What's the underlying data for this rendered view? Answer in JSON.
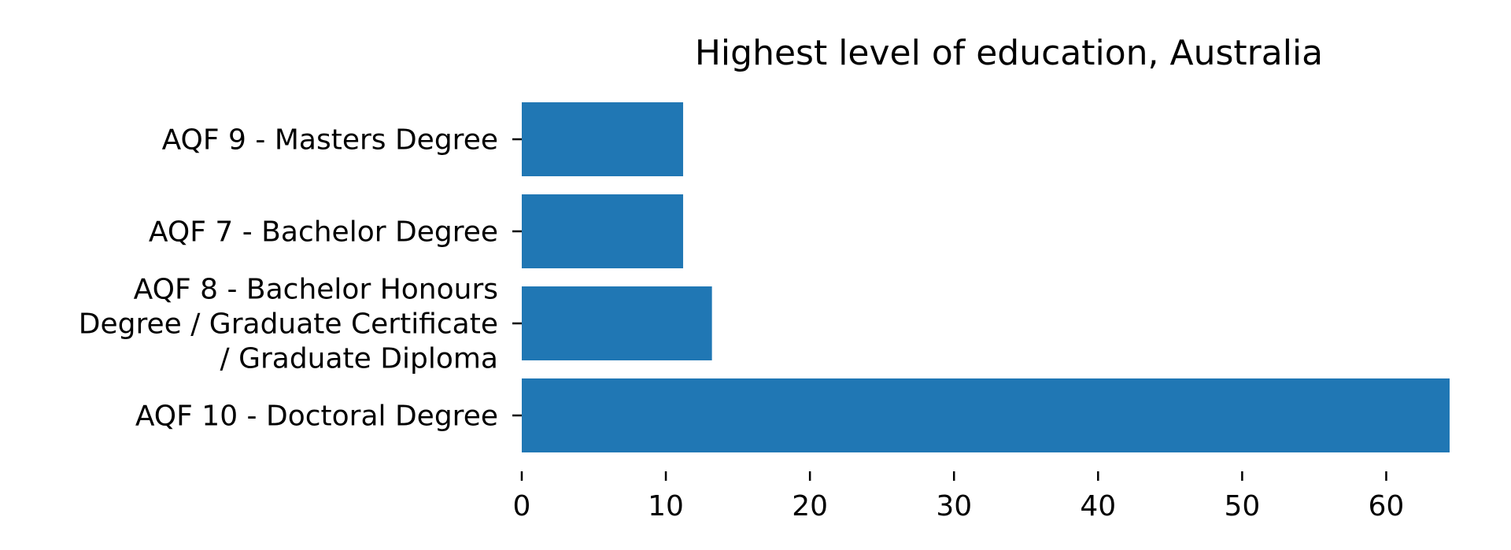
{
  "chart_data": {
    "type": "bar",
    "orientation": "horizontal",
    "title": "Highest level of education, Australia",
    "xlabel": "",
    "ylabel": "",
    "categories": [
      "AQF 9 - Masters Degree",
      "AQF 7 - Bachelor Degree",
      "AQF 8 - Bachelor Honours Degree / Graduate Certificate / Graduate Diploma",
      "AQF 10 - Doctoral Degree"
    ],
    "category_label_lines": [
      [
        "AQF 9 - Masters Degree"
      ],
      [
        "AQF 7 - Bachelor Degree"
      ],
      [
        "AQF 8 - Bachelor Honours",
        "Degree / Graduate Certificate",
        "/ Graduate Diploma"
      ],
      [
        "AQF 10 - Doctoral Degree"
      ]
    ],
    "values": [
      11.2,
      11.2,
      13.2,
      64.4
    ],
    "xlim": [
      0,
      64.4
    ],
    "xticks": [
      0,
      10,
      20,
      30,
      40,
      50,
      60
    ],
    "grid": false,
    "bar_color": "#2077b4"
  }
}
